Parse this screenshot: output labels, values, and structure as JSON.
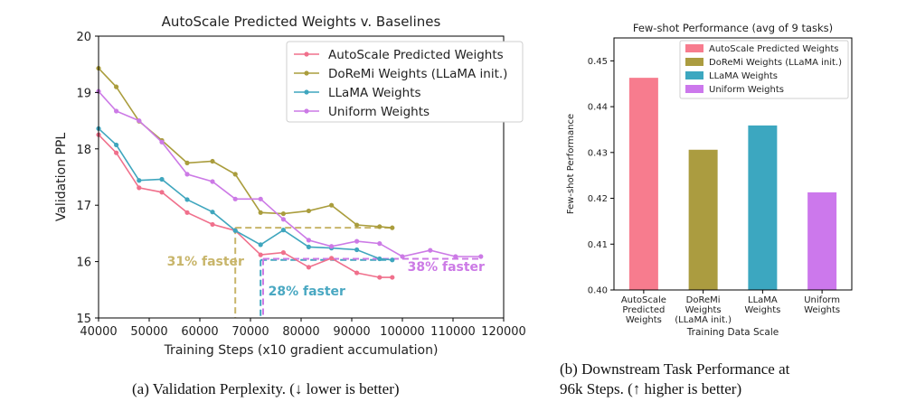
{
  "captions": {
    "left": "(a) Validation Perplexity. (↓ lower is better)",
    "right_line1": "(b) Downstream Task Performance at",
    "right_line2": "96k Steps. (↑ higher is better)"
  },
  "chart_data": [
    {
      "type": "line",
      "title": "AutoScale Predicted Weights v. Baselines",
      "xlabel": "Training Steps (x10 gradient accumulation)",
      "ylabel": "Validation PPL",
      "xlim": [
        40000,
        120000
      ],
      "ylim": [
        15,
        20
      ],
      "xticks": [
        40000,
        50000,
        60000,
        70000,
        80000,
        90000,
        100000,
        110000,
        120000
      ],
      "yticks": [
        15,
        16,
        17,
        18,
        19,
        20
      ],
      "legend_position": "top-right",
      "grid": false,
      "series": [
        {
          "name": "AutoScale Predicted Weights",
          "color": "#f0708c",
          "x": [
            40000,
            43500,
            48000,
            52500,
            57500,
            62500,
            67000,
            72000,
            76500,
            81500,
            86000,
            91000,
            95500,
            98000
          ],
          "y": [
            18.25,
            17.93,
            17.31,
            17.23,
            16.87,
            16.66,
            16.55,
            16.12,
            16.16,
            15.9,
            16.06,
            15.8,
            15.72,
            15.72
          ]
        },
        {
          "name": "DoReMi Weights (LLaMA init.)",
          "color": "#aa9d3d",
          "x": [
            40000,
            43500,
            48000,
            52500,
            57500,
            62500,
            67000,
            72000,
            76500,
            81500,
            86000,
            91000,
            95500,
            98000
          ],
          "y": [
            19.43,
            19.1,
            18.49,
            18.15,
            17.75,
            17.78,
            17.55,
            16.87,
            16.85,
            16.9,
            17.0,
            16.65,
            16.62,
            16.6
          ]
        },
        {
          "name": "LLaMA Weights",
          "color": "#3fa6be",
          "x": [
            40000,
            43500,
            48000,
            52500,
            57500,
            62500,
            67000,
            72000,
            76500,
            81500,
            86000,
            91000,
            95500,
            98000
          ],
          "y": [
            18.36,
            18.07,
            17.44,
            17.46,
            17.1,
            16.88,
            16.55,
            16.3,
            16.56,
            16.26,
            16.24,
            16.21,
            16.05,
            16.03
          ]
        },
        {
          "name": "Uniform Weights",
          "color": "#cc7ae6",
          "x": [
            40000,
            43500,
            48000,
            52500,
            57500,
            62500,
            67000,
            72000,
            76500,
            81500,
            86000,
            91000,
            95500,
            100000,
            105500,
            110500,
            115500
          ],
          "y": [
            19.02,
            18.67,
            18.5,
            18.12,
            17.55,
            17.42,
            17.11,
            17.11,
            16.75,
            16.38,
            16.27,
            16.36,
            16.32,
            16.09,
            16.2,
            16.09,
            16.09
          ]
        }
      ],
      "reference_lines": [
        {
          "color": "#c8b56a",
          "y": 16.6,
          "x_from": 67000,
          "x_to": 98000,
          "x_drop": 67000
        },
        {
          "color": "#3fa6be",
          "y": 16.03,
          "x_from": 72000,
          "x_to": 98000,
          "x_drop": 72000
        },
        {
          "color": "#cc7ae6",
          "y": 16.05,
          "x_from": 72500,
          "x_to": 115500,
          "x_drop": 72500
        }
      ],
      "annotations": [
        {
          "text": "31% faster",
          "color": "#c8b56a",
          "x": 53500,
          "y": 15.93
        },
        {
          "text": "28% faster",
          "color": "#4aa8c2",
          "x": 73500,
          "y": 15.4
        },
        {
          "text": "38% faster",
          "color": "#cc7ae6",
          "x": 101000,
          "y": 15.83
        }
      ]
    },
    {
      "type": "bar",
      "title": "Few-shot Performance (avg of 9 tasks)",
      "xlabel": "Training Data Scale",
      "ylabel": "Few-shot Performance",
      "ylim": [
        0.4,
        0.455
      ],
      "yticks": [
        0.4,
        0.41,
        0.42,
        0.43,
        0.44,
        0.45
      ],
      "legend_position": "top-right",
      "grid": false,
      "categories": [
        [
          "AutoScale",
          "Predicted",
          "Weights"
        ],
        [
          "DoReMi",
          "Weights",
          "(LLaMA init.)"
        ],
        [
          "LLaMA",
          "Weights"
        ],
        [
          "Uniform",
          "Weights"
        ]
      ],
      "legend": [
        "AutoScale Predicted Weights",
        "DoReMi Weights (LLaMA init.)",
        "LLaMA Weights",
        "Uniform Weights"
      ],
      "values": [
        0.4463,
        0.4306,
        0.4359,
        0.4213
      ],
      "colors": [
        "#f77c8e",
        "#ab9c40",
        "#3ca7c0",
        "#cc78ec"
      ]
    }
  ]
}
